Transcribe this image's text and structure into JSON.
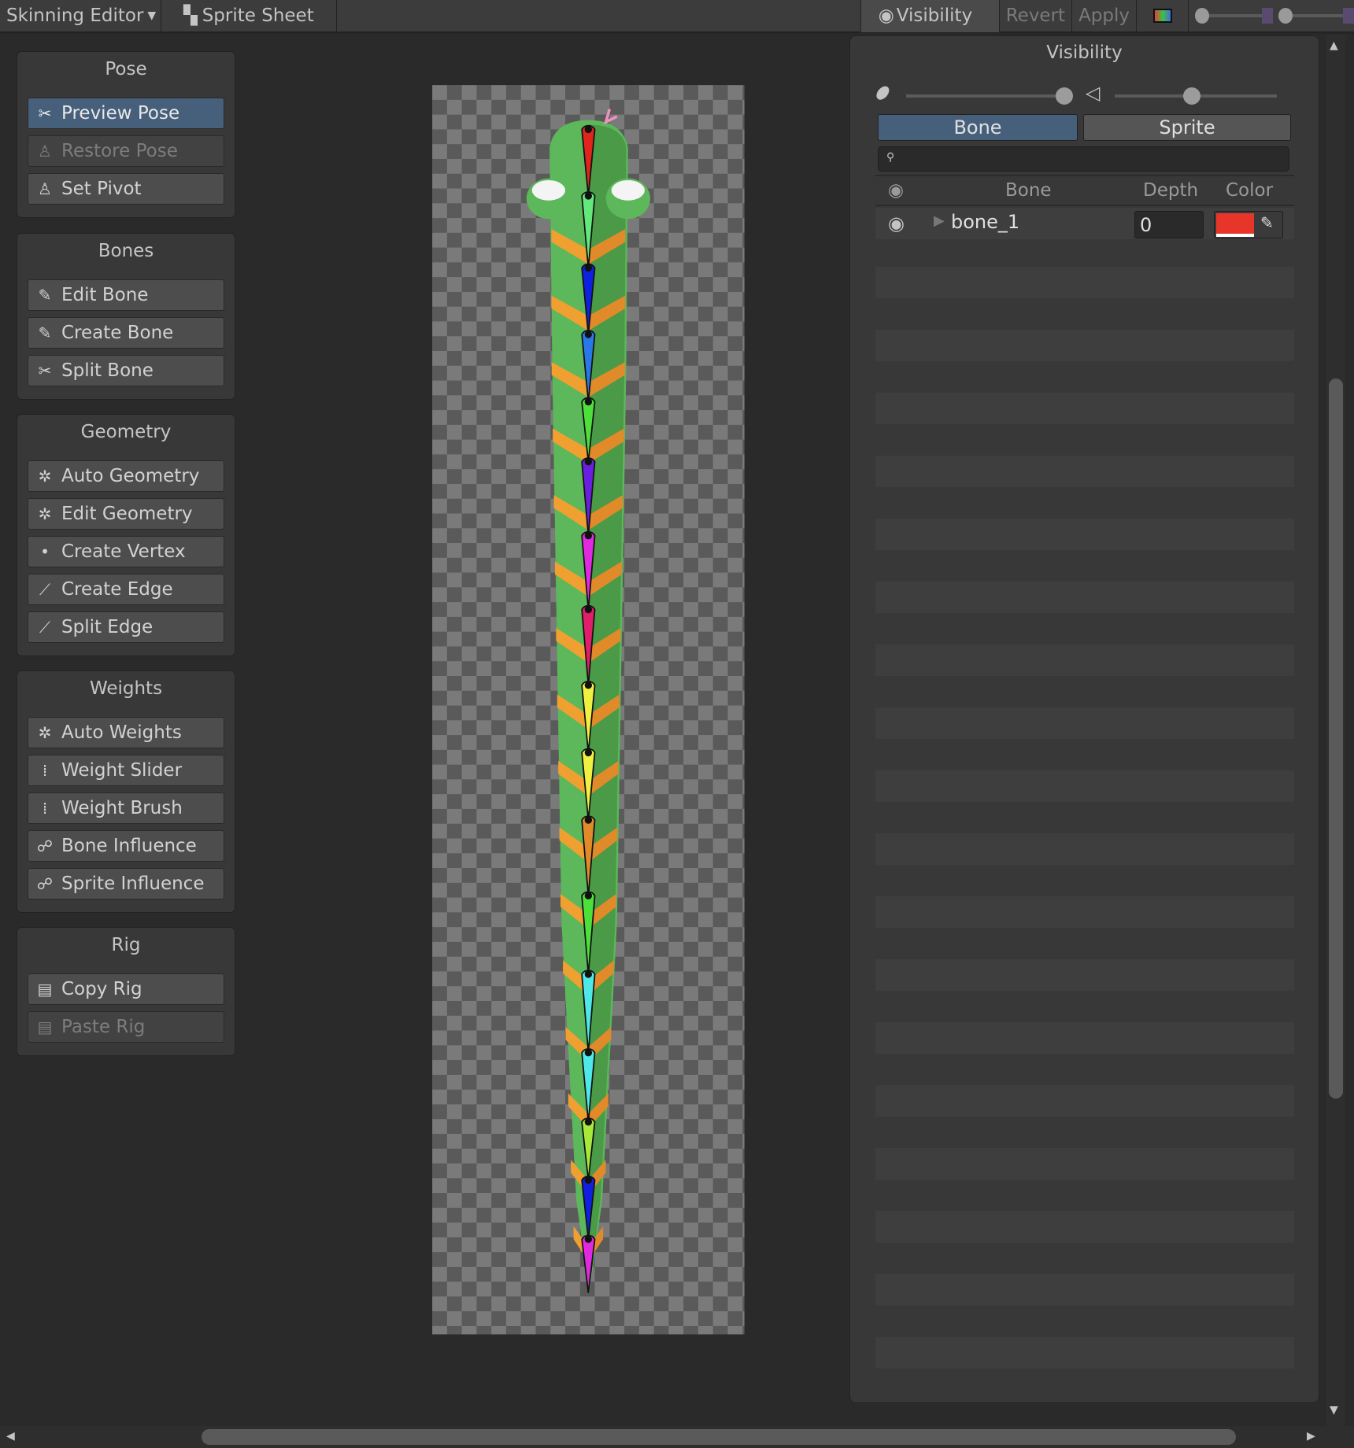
{
  "toolbar": {
    "mode": "Skinning Editor",
    "sprite_sheet": "Sprite Sheet",
    "visibility": "Visibility",
    "revert": "Revert",
    "apply": "Apply"
  },
  "groups": [
    {
      "title": "Pose",
      "buttons": [
        {
          "label": "Preview Pose",
          "state": "selected",
          "icon": "preview-pose-icon"
        },
        {
          "label": "Restore Pose",
          "state": "disabled",
          "icon": "restore-pose-icon"
        },
        {
          "label": "Set Pivot",
          "state": "normal",
          "icon": "set-pivot-icon"
        }
      ]
    },
    {
      "title": "Bones",
      "buttons": [
        {
          "label": "Edit Bone",
          "state": "normal",
          "icon": "edit-bone-icon"
        },
        {
          "label": "Create Bone",
          "state": "normal",
          "icon": "create-bone-icon"
        },
        {
          "label": "Split Bone",
          "state": "normal",
          "icon": "split-bone-icon"
        }
      ]
    },
    {
      "title": "Geometry",
      "buttons": [
        {
          "label": "Auto Geometry",
          "state": "normal",
          "icon": "auto-geometry-icon"
        },
        {
          "label": "Edit Geometry",
          "state": "normal",
          "icon": "edit-geometry-icon"
        },
        {
          "label": "Create Vertex",
          "state": "normal",
          "icon": "create-vertex-icon"
        },
        {
          "label": "Create Edge",
          "state": "normal",
          "icon": "create-edge-icon"
        },
        {
          "label": "Split Edge",
          "state": "normal",
          "icon": "split-edge-icon"
        }
      ]
    },
    {
      "title": "Weights",
      "buttons": [
        {
          "label": "Auto Weights",
          "state": "normal",
          "icon": "auto-weights-icon"
        },
        {
          "label": "Weight Slider",
          "state": "normal",
          "icon": "weight-slider-icon"
        },
        {
          "label": "Weight Brush",
          "state": "normal",
          "icon": "weight-brush-icon"
        },
        {
          "label": "Bone Influence",
          "state": "normal",
          "icon": "bone-influence-icon"
        },
        {
          "label": "Sprite Influence",
          "state": "normal",
          "icon": "sprite-influence-icon"
        }
      ]
    },
    {
      "title": "Rig",
      "buttons": [
        {
          "label": "Copy Rig",
          "state": "normal",
          "icon": "copy-rig-icon"
        },
        {
          "label": "Paste Rig",
          "state": "disabled",
          "icon": "paste-rig-icon"
        }
      ]
    }
  ],
  "visibility": {
    "title": "Visibility",
    "bone_opacity": 1.0,
    "mesh_opacity": 0.5,
    "tabs": [
      "Bone",
      "Sprite"
    ],
    "active_tab": "Bone",
    "search_value": "",
    "columns": {
      "bone": "Bone",
      "depth": "Depth",
      "color": "Color"
    },
    "rows": [
      {
        "name": "bone_1",
        "depth": "0",
        "color": "#e8352a",
        "visible": true
      }
    ]
  },
  "bone_colors": [
    "#e0261c",
    "#63e87c",
    "#1020e0",
    "#2a78e8",
    "#4ee03a",
    "#6a1ee0",
    "#e02ae0",
    "#e01e6a",
    "#f0f040",
    "#f0f040",
    "#e08a2a",
    "#4ee03a",
    "#4ee8e8",
    "#4ee8e8",
    "#a8e83a",
    "#1020e0",
    "#e02ae0"
  ]
}
